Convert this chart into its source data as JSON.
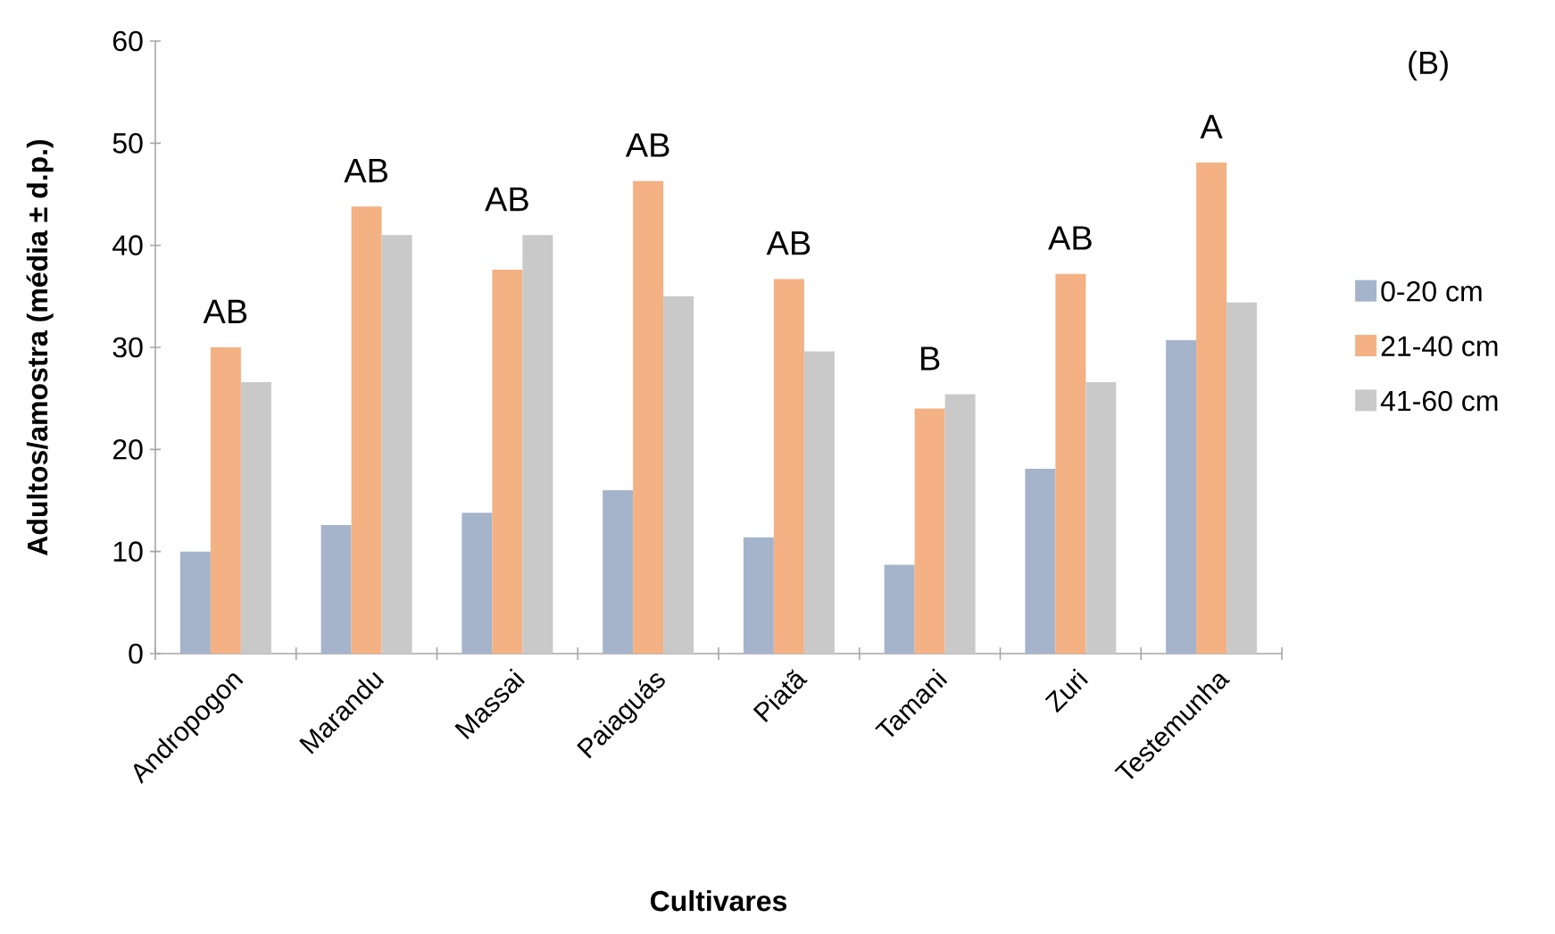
{
  "chart_data": {
    "type": "bar",
    "xlabel": "Cultivares",
    "ylabel": "Adultos/amostra (média ± d.p.)",
    "categories": [
      "Andropogon",
      "Marandu",
      "Massai",
      "Paiaguás",
      "Piatã",
      "Tamani",
      "Zuri",
      "Testemunha"
    ],
    "series": [
      {
        "name": "0-20 cm",
        "color": "#a5b4cb",
        "values": [
          10,
          12.6,
          13.8,
          16,
          11.4,
          8.7,
          18.1,
          30.7
        ]
      },
      {
        "name": "21-40 cm",
        "color": "#f4b183",
        "values": [
          30,
          43.8,
          37.6,
          46.3,
          36.7,
          24,
          37.2,
          48.1
        ]
      },
      {
        "name": "41-60 cm",
        "color": "#c9c9c9",
        "values": [
          26.6,
          41,
          41,
          35,
          29.6,
          25.4,
          26.6,
          34.4
        ]
      }
    ],
    "ylim": [
      0,
      60
    ],
    "yticks": [
      0,
      10,
      20,
      30,
      40,
      50,
      60
    ],
    "grid": false,
    "legend": "right",
    "annotations": [
      "AB",
      "AB",
      "AB",
      "AB",
      "AB",
      "B",
      "AB",
      "A",
      "(B)"
    ]
  }
}
